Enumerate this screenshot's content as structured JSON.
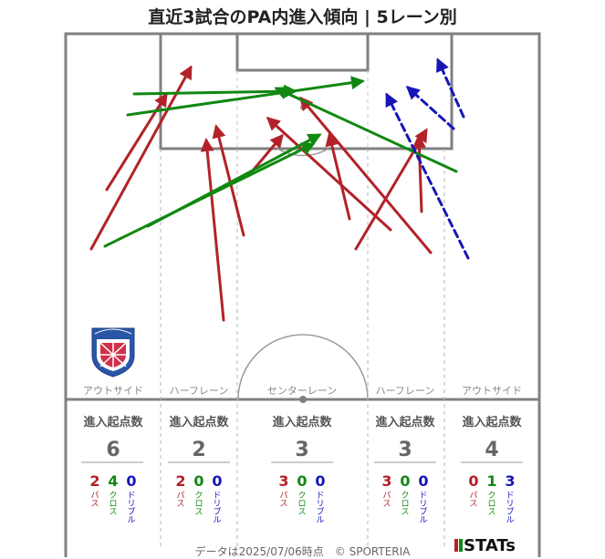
{
  "title": "直近3試合のPA内進入傾向 | 5レーン別",
  "lanes": [
    {
      "name": "アウトサイド",
      "header": "進入起点数",
      "total": "6",
      "pass": "2",
      "cross": "4",
      "dribble": "0",
      "pass_label": "パス",
      "cross_label": "クロス",
      "dribble_label": "ドリブル"
    },
    {
      "name": "ハーフレーン",
      "header": "進入起点数",
      "total": "2",
      "pass": "2",
      "cross": "0",
      "dribble": "0",
      "pass_label": "パス",
      "cross_label": "クロス",
      "dribble_label": "ドリブル"
    },
    {
      "name": "センターレーン",
      "header": "進入起点数",
      "total": "3",
      "pass": "3",
      "cross": "0",
      "dribble": "0",
      "pass_label": "パス",
      "cross_label": "クロス",
      "dribble_label": "ドリブル"
    },
    {
      "name": "ハーフレーン",
      "header": "進入起点数",
      "total": "3",
      "pass": "3",
      "cross": "0",
      "dribble": "0",
      "pass_label": "パス",
      "cross_label": "クロス",
      "dribble_label": "ドリブル"
    },
    {
      "name": "アウトサイド",
      "header": "進入起点数",
      "total": "4",
      "pass": "0",
      "cross": "1",
      "dribble": "3",
      "pass_label": "パス",
      "cross_label": "クロス",
      "dribble_label": "ドリブル"
    }
  ],
  "footer": "データは2025/07/06時点　© SPORTERIA",
  "logo_text": "STATs",
  "colors": {
    "pass": "#b22228",
    "cross": "#118811",
    "dribble": "#1616b8",
    "pitch_line": "#808080",
    "lane_line": "#b5b5b5"
  },
  "chart_data": {
    "type": "pitch-arrows",
    "title": "直近3試合のPA内進入傾向 | 5レーン別",
    "arrows": [
      {
        "kind": "pass",
        "from": [
          117,
          208
        ],
        "to": [
          182,
          104
        ]
      },
      {
        "kind": "pass",
        "from": [
          100,
          273
        ],
        "to": [
          209,
          74
        ]
      },
      {
        "kind": "pass",
        "from": [
          245,
          351
        ],
        "to": [
          226,
          154
        ]
      },
      {
        "kind": "pass",
        "from": [
          267,
          258
        ],
        "to": [
          237,
          139
        ]
      },
      {
        "kind": "pass",
        "from": [
          272,
          193
        ],
        "to": [
          309,
          149
        ]
      },
      {
        "kind": "pass",
        "from": [
          383,
          240
        ],
        "to": [
          361,
          148
        ]
      },
      {
        "kind": "pass",
        "from": [
          428,
          252
        ],
        "to": [
          294,
          130
        ]
      },
      {
        "kind": "pass",
        "from": [
          472,
          277
        ],
        "to": [
          330,
          108
        ]
      },
      {
        "kind": "pass",
        "from": [
          390,
          273
        ],
        "to": [
          467,
          143
        ]
      },
      {
        "kind": "pass",
        "from": [
          462,
          232
        ],
        "to": [
          459,
          150
        ]
      },
      {
        "kind": "cross",
        "from": [
          147,
          103
        ],
        "to": [
          323,
          100
        ]
      },
      {
        "kind": "cross",
        "from": [
          140,
          126
        ],
        "to": [
          397,
          89
        ]
      },
      {
        "kind": "cross",
        "from": [
          162,
          248
        ],
        "to": [
          350,
          148
        ]
      },
      {
        "kind": "cross",
        "from": [
          115,
          270
        ],
        "to": [
          343,
          158
        ]
      },
      {
        "kind": "cross",
        "from": [
          500,
          188
        ],
        "to": [
          303,
          97
        ]
      },
      {
        "kind": "dribble",
        "from": [
          513,
          283
        ],
        "to": [
          424,
          104
        ]
      },
      {
        "kind": "dribble",
        "from": [
          497,
          141
        ],
        "to": [
          447,
          96
        ]
      },
      {
        "kind": "dribble",
        "from": [
          508,
          128
        ],
        "to": [
          480,
          66
        ]
      }
    ]
  }
}
